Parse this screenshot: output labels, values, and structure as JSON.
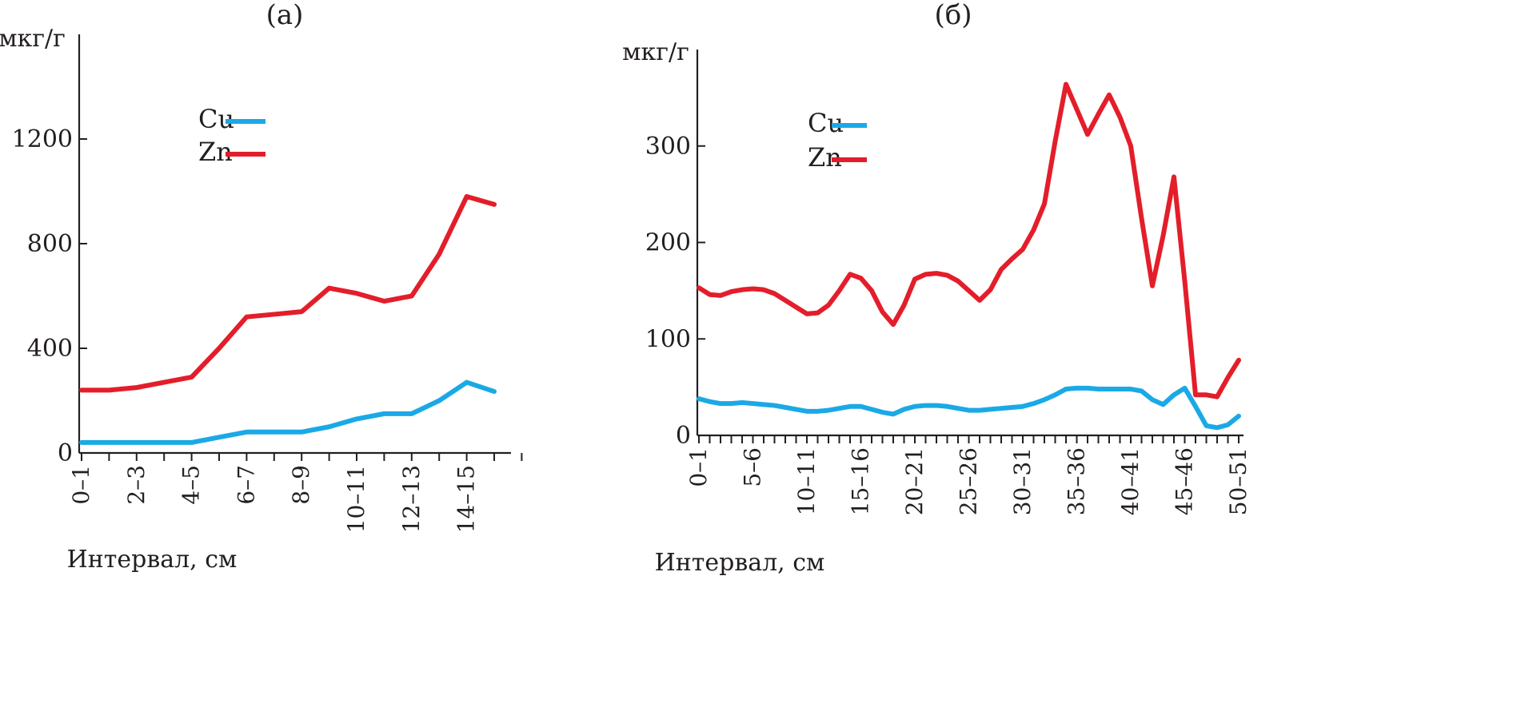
{
  "chart_data": [
    {
      "panel": "(a)",
      "type": "line",
      "title": "(a)",
      "xlabel": "Интервал, см",
      "ylabel": "мкг/г",
      "ylim": [
        0,
        1600
      ],
      "yticks": [
        0,
        400,
        800,
        1200
      ],
      "ytick_labels": [
        "0",
        "400",
        "800",
        "1200"
      ],
      "x": [
        0,
        1,
        2,
        3,
        4,
        5,
        6,
        7,
        8,
        9,
        10,
        11,
        12,
        13,
        14,
        15
      ],
      "xtick_labels": [
        {
          "x": 0,
          "label": "0–1"
        },
        {
          "x": 2,
          "label": "2–3"
        },
        {
          "x": 4,
          "label": "4–5"
        },
        {
          "x": 6,
          "label": "6–7"
        },
        {
          "x": 8,
          "label": "8–9"
        },
        {
          "x": 10,
          "label": "10–11"
        },
        {
          "x": 12,
          "label": "12–13"
        },
        {
          "x": 14,
          "label": "14–15"
        }
      ],
      "series": [
        {
          "name": "Cu",
          "color": "#1ba9e6",
          "values": [
            40,
            40,
            40,
            40,
            40,
            60,
            80,
            80,
            80,
            100,
            130,
            150,
            150,
            200,
            270,
            235
          ]
        },
        {
          "name": "Zn",
          "color": "#e31e2a",
          "values": [
            240,
            240,
            250,
            270,
            290,
            400,
            520,
            530,
            540,
            630,
            610,
            580,
            600,
            760,
            980,
            950
          ]
        }
      ],
      "legend": "upper-left"
    },
    {
      "panel": "(б)",
      "type": "line",
      "title": "(б)",
      "xlabel": "Интервал, см",
      "ylabel": "мкг/г",
      "ylim": [
        0,
        400
      ],
      "yticks": [
        0,
        100,
        200,
        300
      ],
      "ytick_labels": [
        "0",
        "100",
        "200",
        "300"
      ],
      "x": [
        0,
        1,
        2,
        3,
        4,
        5,
        6,
        7,
        8,
        9,
        10,
        11,
        12,
        13,
        14,
        15,
        16,
        17,
        18,
        19,
        20,
        21,
        22,
        23,
        24,
        25,
        26,
        27,
        28,
        29,
        30,
        31,
        32,
        33,
        34,
        35,
        36,
        37,
        38,
        39,
        40,
        41,
        42,
        43,
        44,
        45,
        46,
        47,
        48,
        49,
        50
      ],
      "xtick_labels": [
        {
          "x": 0,
          "label": "0–1"
        },
        {
          "x": 5,
          "label": "5–6"
        },
        {
          "x": 10,
          "label": "10–11"
        },
        {
          "x": 15,
          "label": "15–16"
        },
        {
          "x": 20,
          "label": "20–21"
        },
        {
          "x": 25,
          "label": "25–26"
        },
        {
          "x": 30,
          "label": "30–31"
        },
        {
          "x": 35,
          "label": "35–36"
        },
        {
          "x": 40,
          "label": "40–41"
        },
        {
          "x": 45,
          "label": "45–46"
        },
        {
          "x": 50,
          "label": "50–51"
        }
      ],
      "series": [
        {
          "name": "Cu",
          "color": "#1ba9e6",
          "values": [
            38,
            35,
            33,
            33,
            34,
            33,
            32,
            31,
            29,
            27,
            25,
            25,
            26,
            28,
            30,
            30,
            27,
            24,
            22,
            27,
            30,
            31,
            31,
            30,
            28,
            26,
            26,
            27,
            28,
            29,
            30,
            33,
            37,
            42,
            48,
            49,
            49,
            48,
            48,
            48,
            48,
            46,
            37,
            32,
            42,
            49,
            30,
            10,
            8,
            11,
            20
          ]
        },
        {
          "name": "Zn",
          "color": "#e31e2a",
          "values": [
            153,
            146,
            145,
            149,
            151,
            152,
            151,
            147,
            140,
            133,
            126,
            127,
            135,
            150,
            167,
            163,
            150,
            128,
            115,
            135,
            162,
            167,
            168,
            166,
            160,
            150,
            140,
            151,
            172,
            183,
            193,
            213,
            240,
            305,
            364,
            338,
            312,
            333,
            353,
            330,
            300,
            225,
            155,
            207,
            268,
            160,
            42,
            42,
            40,
            60,
            78
          ]
        }
      ],
      "legend": "upper-left"
    }
  ]
}
